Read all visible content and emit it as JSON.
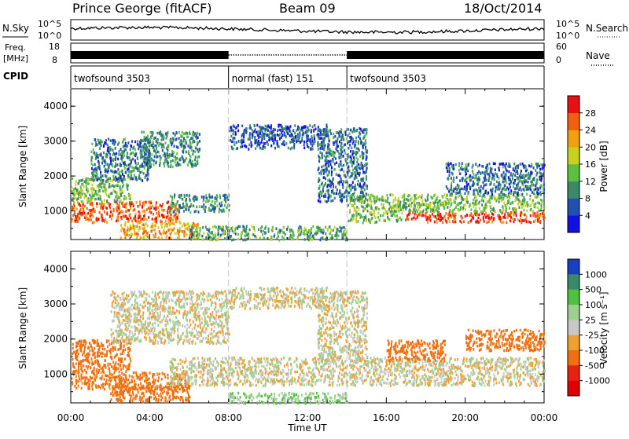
{
  "header": {
    "station": "Prince George (fitACF)",
    "beam": "Beam 09",
    "date": "18/Oct/2014"
  },
  "noise_panel": {
    "left_label": "N.Sky",
    "left_ticks": [
      "10^5",
      "10^0"
    ],
    "right_label": "N.Search",
    "right_ticks": [
      "10^5",
      "10^0"
    ]
  },
  "freq_panel": {
    "left_label_1": "Freq.",
    "left_label_2": "[MHz]",
    "left_ticks": [
      "18",
      "8"
    ],
    "right_label": "Nave",
    "right_ticks": [
      "60",
      "0"
    ]
  },
  "cpid": {
    "label": "CPID",
    "segments": [
      {
        "start_hour": 0,
        "end_hour": 8,
        "name": "twofsound 3503"
      },
      {
        "start_hour": 8,
        "end_hour": 14,
        "name": "normal (fast) 151"
      },
      {
        "start_hour": 14,
        "end_hour": 24,
        "name": "twofsound 3503"
      }
    ]
  },
  "axes": {
    "ylabel": "Slant Range [km]",
    "xlabel": "Time UT",
    "x_tick_labels": [
      "00:00",
      "04:00",
      "08:00",
      "12:00",
      "16:00",
      "20:00",
      "00:00"
    ],
    "y_tick_labels": [
      "1000",
      "2000",
      "3000",
      "4000"
    ]
  },
  "power_colorbar": {
    "label": "Power [dB]",
    "ticks": [
      "4",
      "8",
      "12",
      "16",
      "20",
      "24",
      "28"
    ],
    "colors": [
      "#1010e0",
      "#2050b0",
      "#3a8a6a",
      "#5cc040",
      "#c8d020",
      "#f0a010",
      "#f06010",
      "#e81010"
    ]
  },
  "velocity_colorbar": {
    "label": "Velocity [m s⁻¹]",
    "ticks": [
      "1000",
      "500",
      "100",
      "25",
      "-25",
      "-100",
      "-500",
      "-1000"
    ],
    "colors": [
      "#1840c0",
      "#3a8a6a",
      "#50c040",
      "#9ad090",
      "#c8c8c8",
      "#f0a030",
      "#f07010",
      "#e82010",
      "#e00000"
    ]
  },
  "chart_data": [
    {
      "type": "heatmap",
      "title": "",
      "xlabel": "",
      "ylabel": "Slant Range [km]",
      "xlim": [
        0,
        24
      ],
      "ylim": [
        180,
        4500
      ],
      "colorbar_label": "Power [dB]",
      "colorbar_range": [
        0,
        30
      ],
      "scatter_regions": [
        {
          "t0": 0,
          "t1": 5.5,
          "r0": 700,
          "r1": 1300,
          "value": 26
        },
        {
          "t0": 0,
          "t1": 3,
          "r0": 1300,
          "r1": 2000,
          "value": 14
        },
        {
          "t0": 1,
          "t1": 4,
          "r0": 1900,
          "r1": 3100,
          "value": 8
        },
        {
          "t0": 2.5,
          "t1": 6.5,
          "r0": 250,
          "r1": 700,
          "value": 22
        },
        {
          "t0": 3.5,
          "t1": 6.5,
          "r0": 2300,
          "r1": 3300,
          "value": 10
        },
        {
          "t0": 5,
          "t1": 8,
          "r0": 1000,
          "r1": 1500,
          "value": 10
        },
        {
          "t0": 6,
          "t1": 14,
          "r0": 200,
          "r1": 600,
          "value": 12
        },
        {
          "t0": 8,
          "t1": 13,
          "r0": 2800,
          "r1": 3500,
          "value": 6
        },
        {
          "t0": 12.5,
          "t1": 15,
          "r0": 1300,
          "r1": 3400,
          "value": 8
        },
        {
          "t0": 14,
          "t1": 17,
          "r0": 700,
          "r1": 1500,
          "value": 14
        },
        {
          "t0": 17,
          "t1": 24,
          "r0": 700,
          "r1": 1000,
          "value": 28
        },
        {
          "t0": 17,
          "t1": 24,
          "r0": 1000,
          "r1": 1500,
          "value": 14
        },
        {
          "t0": 19,
          "t1": 24,
          "r0": 1500,
          "r1": 2400,
          "value": 8
        }
      ]
    },
    {
      "type": "heatmap",
      "title": "",
      "xlabel": "Time UT",
      "ylabel": "Slant Range [km]",
      "xlim": [
        0,
        24
      ],
      "ylim": [
        180,
        4500
      ],
      "colorbar_label": "Velocity [m s⁻¹]",
      "colorbar_range": [
        -1000,
        1000
      ],
      "scatter_regions": [
        {
          "t0": 0,
          "t1": 3,
          "r0": 1100,
          "r1": 2000,
          "value": -400
        },
        {
          "t0": 0,
          "t1": 6,
          "r0": 600,
          "r1": 1100,
          "value": -150
        },
        {
          "t0": 2,
          "t1": 6,
          "r0": 250,
          "r1": 700,
          "value": -200
        },
        {
          "t0": 2,
          "t1": 8,
          "r0": 1900,
          "r1": 3400,
          "value": 0
        },
        {
          "t0": 5,
          "t1": 14,
          "r0": 700,
          "r1": 1500,
          "value": 0
        },
        {
          "t0": 8,
          "t1": 13,
          "r0": 2900,
          "r1": 3500,
          "value": 0
        },
        {
          "t0": 8,
          "t1": 14,
          "r0": 200,
          "r1": 500,
          "value": 80
        },
        {
          "t0": 12.5,
          "t1": 15,
          "r0": 1400,
          "r1": 3400,
          "value": 0
        },
        {
          "t0": 14,
          "t1": 24,
          "r0": 700,
          "r1": 1500,
          "value": 0
        },
        {
          "t0": 16,
          "t1": 19,
          "r0": 1400,
          "r1": 2000,
          "value": -300
        },
        {
          "t0": 20,
          "t1": 24,
          "r0": 1700,
          "r1": 2300,
          "value": -250
        }
      ]
    }
  ]
}
